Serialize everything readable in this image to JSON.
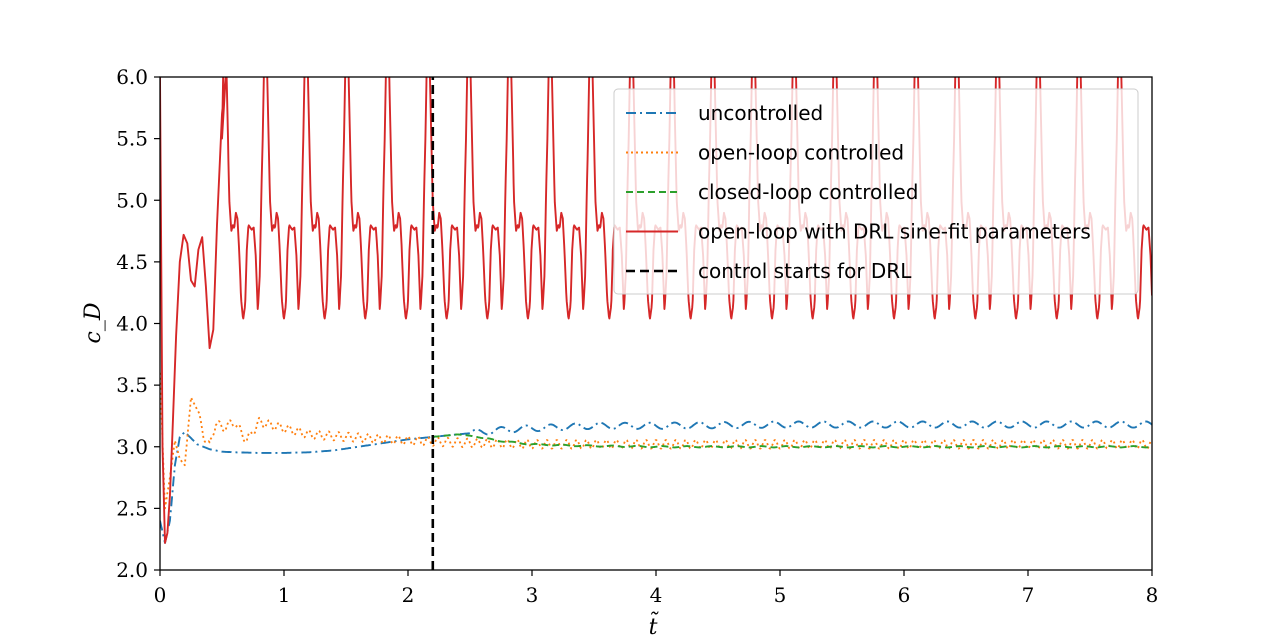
{
  "chart_data": {
    "type": "line",
    "xlabel": "t̃",
    "ylabel": "c_D",
    "xlim": [
      0,
      8
    ],
    "ylim": [
      2.0,
      6.0
    ],
    "x_ticks": [
      "0",
      "1",
      "2",
      "3",
      "4",
      "5",
      "6",
      "7",
      "8"
    ],
    "y_ticks": [
      "2.0",
      "2.5",
      "3.0",
      "3.5",
      "4.0",
      "4.5",
      "5.0",
      "5.5",
      "6.0"
    ],
    "grid": false,
    "legend_position": "top-right",
    "control_start_x": 2.2,
    "series": [
      {
        "name": "uncontrolled",
        "color": "#1f77b4",
        "style": "dashdot",
        "x": [
          0.0,
          0.04,
          0.08,
          0.12,
          0.16,
          0.2,
          0.25,
          0.3,
          0.4,
          0.5,
          0.6,
          0.8,
          1.0,
          1.2,
          1.4,
          1.6,
          1.8,
          2.0,
          2.2,
          2.4,
          2.6,
          2.8,
          3.0,
          3.5,
          4.0,
          5.0,
          6.0,
          7.0,
          8.0
        ],
        "y": [
          2.4,
          2.22,
          2.4,
          2.85,
          3.08,
          3.12,
          3.07,
          3.02,
          2.98,
          2.96,
          2.955,
          2.95,
          2.95,
          2.955,
          2.97,
          3.0,
          3.03,
          3.06,
          3.08,
          3.1,
          3.12,
          3.14,
          3.15,
          3.17,
          3.17,
          3.18,
          3.18,
          3.18,
          3.18
        ],
        "oscillation": {
          "start": 2.5,
          "amplitude": 0.025,
          "period": 0.2
        }
      },
      {
        "name": "open-loop controlled",
        "color": "#ff7f0e",
        "style": "dotted",
        "x": [
          0.0,
          0.04,
          0.08,
          0.12,
          0.16,
          0.2,
          0.25,
          0.3,
          0.35,
          0.4,
          0.45,
          0.5,
          0.6,
          0.7,
          0.8,
          1.0,
          1.2,
          1.5,
          2.0,
          2.5,
          3.0,
          4.0,
          5.0,
          6.0,
          7.0,
          8.0
        ],
        "y": [
          3.6,
          2.5,
          2.75,
          3.05,
          2.9,
          2.85,
          3.4,
          3.3,
          3.1,
          3.0,
          3.2,
          3.15,
          3.2,
          3.05,
          3.2,
          3.15,
          3.1,
          3.08,
          3.05,
          3.03,
          3.02,
          3.02,
          3.02,
          3.02,
          3.02,
          3.02
        ],
        "oscillation": {
          "start": 0.3,
          "amplitude": 0.035,
          "period": 0.08
        }
      },
      {
        "name": "closed-loop controlled",
        "color": "#2ca02c",
        "style": "dashed",
        "x": [
          2.2,
          2.3,
          2.4,
          2.5,
          2.6,
          2.8,
          3.0,
          3.3,
          3.6,
          4.0,
          5.0,
          6.0,
          7.0,
          8.0
        ],
        "y": [
          3.08,
          3.09,
          3.1,
          3.09,
          3.07,
          3.04,
          3.02,
          3.01,
          3.005,
          3.0,
          3.0,
          3.0,
          3.0,
          3.0
        ],
        "oscillation": {
          "start": 2.6,
          "amplitude": 0.005,
          "period": 0.2
        }
      },
      {
        "name": "open-loop with DRL sine-fit parameters",
        "color": "#d62728",
        "style": "solid",
        "transient_x": [
          0.0,
          0.02,
          0.04,
          0.06,
          0.08,
          0.1,
          0.13,
          0.16,
          0.19,
          0.22,
          0.25,
          0.28,
          0.31,
          0.34,
          0.37,
          0.4,
          0.43,
          0.46,
          0.5,
          0.53
        ],
        "transient_y": [
          6.0,
          3.0,
          2.22,
          2.3,
          2.6,
          3.1,
          3.9,
          4.5,
          4.72,
          4.65,
          4.35,
          4.3,
          4.6,
          4.7,
          4.3,
          3.8,
          3.95,
          4.8,
          5.7,
          6.0
        ],
        "periodic_start": 0.5,
        "period": 0.328,
        "cycle_phase": [
          0.0,
          0.05,
          0.1,
          0.14,
          0.18,
          0.23,
          0.27,
          0.3,
          0.34,
          0.38,
          0.42,
          0.47,
          0.52,
          0.57,
          0.61,
          0.65,
          0.69,
          0.73,
          0.78,
          0.83,
          0.88,
          0.93,
          0.97,
          1.0
        ],
        "cycle_y": [
          5.5,
          6.4,
          6.2,
          5.6,
          5.0,
          4.75,
          4.8,
          4.77,
          4.9,
          4.85,
          4.6,
          4.2,
          4.03,
          4.15,
          4.6,
          4.8,
          4.78,
          4.76,
          4.78,
          4.55,
          4.1,
          4.4,
          5.1,
          5.5
        ]
      },
      {
        "name": "control starts for DRL",
        "color": "#000000",
        "style": "vline",
        "x": [
          2.2,
          2.2
        ],
        "y": [
          2.0,
          6.0
        ]
      }
    ]
  }
}
